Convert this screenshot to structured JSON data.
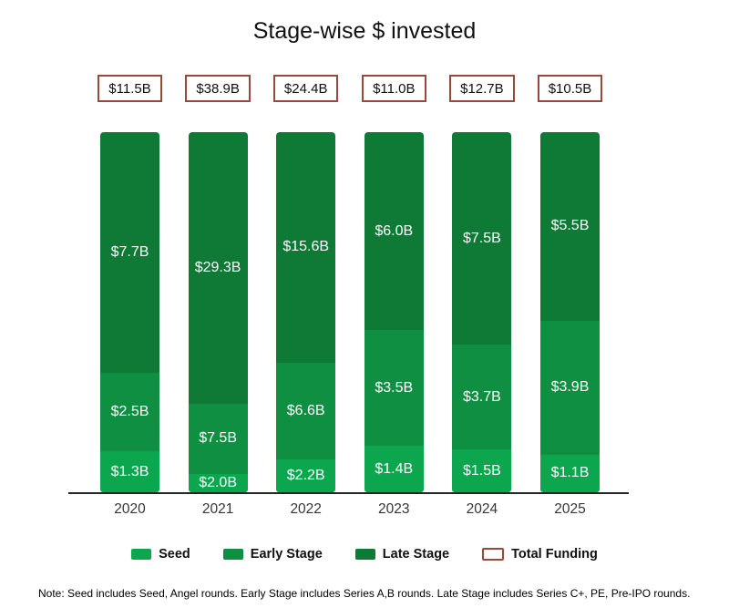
{
  "chart_data": {
    "type": "bar",
    "subtype": "100%-stacked-column",
    "title": "Stage-wise $ invested",
    "categories": [
      "2020",
      "2021",
      "2022",
      "2023",
      "2024",
      "2025"
    ],
    "series": [
      {
        "name": "Seed",
        "values": [
          1.3,
          2.0,
          2.2,
          1.4,
          1.5,
          1.1
        ],
        "labels": [
          "$1.3B",
          "$2.0B",
          "$2.2B",
          "$1.4B",
          "$1.5B",
          "$1.1B"
        ]
      },
      {
        "name": "Early Stage",
        "values": [
          2.5,
          7.5,
          6.6,
          3.5,
          3.7,
          3.9
        ],
        "labels": [
          "$2.5B",
          "$7.5B",
          "$6.6B",
          "$3.5B",
          "$3.7B",
          "$3.9B"
        ]
      },
      {
        "name": "Late Stage",
        "values": [
          7.7,
          29.3,
          15.6,
          6.0,
          7.5,
          5.5
        ],
        "labels": [
          "$7.7B",
          "$29.3B",
          "$15.6B",
          "$6.0B",
          "$7.5B",
          "$5.5B"
        ]
      }
    ],
    "totals": {
      "name": "Total Funding",
      "values": [
        11.5,
        38.9,
        24.4,
        11.0,
        12.7,
        10.5
      ],
      "labels": [
        "$11.5B",
        "$38.9B",
        "$24.4B",
        "$11.0B",
        "$12.7B",
        "$10.5B"
      ]
    },
    "stack_order_top_to_bottom": [
      "Late Stage",
      "Early Stage",
      "Seed"
    ],
    "legend": [
      "Seed",
      "Early Stage",
      "Late Stage",
      "Total Funding"
    ],
    "legend_position": "bottom",
    "grid": false
  },
  "colors": {
    "seed": "#0ca64e",
    "early_stage": "#0f8f41",
    "late_stage": "#0f7936",
    "total_funding_border": "#964a37",
    "axis": "#262626",
    "bar_label_text": "#ffffff"
  },
  "note": "Note: Seed includes Seed, Angel rounds. Early Stage includes Series A,B rounds. Late Stage includes Series C+, PE, Pre-IPO rounds."
}
